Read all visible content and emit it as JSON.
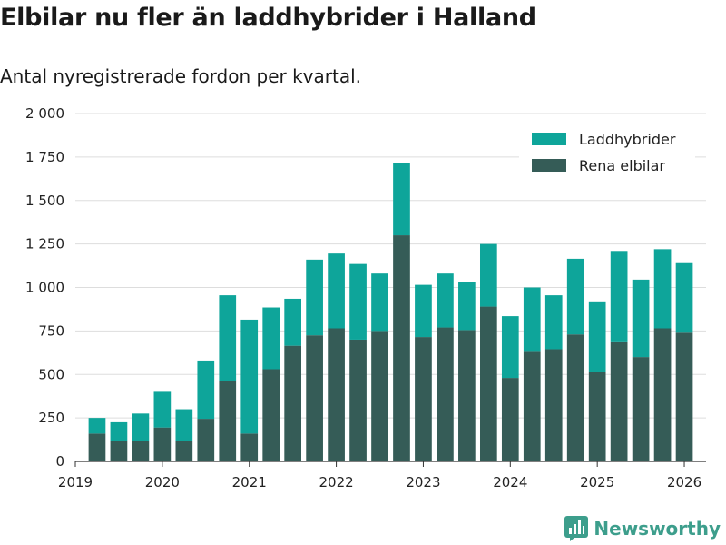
{
  "title": "Elbilar nu fler än laddhybrider i Halland",
  "subtitle": "Antal nyregistrerade fordon per kvartal.",
  "logo": {
    "text": "Newsworthy",
    "icon": "bar-chart-icon"
  },
  "colors": {
    "laddhybrider": "#0ea59a",
    "elbilar": "#355c57",
    "grid": "#dddddd",
    "axis": "#333333",
    "brand": "#3d9e8c"
  },
  "chart_data": {
    "type": "bar",
    "stacked": true,
    "title": "Elbilar nu fler än laddhybrider i Halland",
    "subtitle": "Antal nyregistrerade fordon per kvartal.",
    "xlabel": "",
    "ylabel": "",
    "ylim": [
      0,
      2000
    ],
    "yticks": [
      0,
      250,
      500,
      750,
      1000,
      1250,
      1500,
      1750,
      2000
    ],
    "ytick_labels": [
      "0",
      "250",
      "500",
      "750",
      "1 000",
      "1 250",
      "1 500",
      "1 750",
      "2 000"
    ],
    "xlim": [
      2019,
      2026.25
    ],
    "xticks": [
      2019,
      2020,
      2021,
      2022,
      2023,
      2024,
      2025,
      2026
    ],
    "xtick_labels": [
      "2019",
      "2020",
      "2021",
      "2022",
      "2023",
      "2024",
      "2025",
      "2026"
    ],
    "legend_position": "top-right",
    "categories": [
      "2019 Q2",
      "2019 Q3",
      "2019 Q4",
      "2020 Q1",
      "2020 Q2",
      "2020 Q3",
      "2020 Q4",
      "2021 Q1",
      "2021 Q2",
      "2021 Q3",
      "2021 Q4",
      "2022 Q1",
      "2022 Q2",
      "2022 Q3",
      "2022 Q4",
      "2023 Q1",
      "2023 Q2",
      "2023 Q3",
      "2023 Q4",
      "2024 Q1",
      "2024 Q2",
      "2024 Q3",
      "2024 Q4",
      "2025 Q1",
      "2025 Q2",
      "2025 Q3",
      "2025 Q4",
      "2026 Q1"
    ],
    "x": [
      2019.25,
      2019.5,
      2019.75,
      2020,
      2020.25,
      2020.5,
      2020.75,
      2021,
      2021.25,
      2021.5,
      2021.75,
      2022,
      2022.25,
      2022.5,
      2022.75,
      2023,
      2023.25,
      2023.5,
      2023.75,
      2024,
      2024.25,
      2024.5,
      2024.75,
      2025,
      2025.25,
      2025.5,
      2025.75,
      2026
    ],
    "series": [
      {
        "name": "Rena elbilar",
        "color_key": "elbilar",
        "values": [
          160,
          120,
          120,
          195,
          115,
          245,
          460,
          160,
          530,
          665,
          725,
          765,
          700,
          750,
          1300,
          715,
          770,
          755,
          890,
          480,
          635,
          645,
          730,
          515,
          690,
          600,
          765,
          740
        ]
      },
      {
        "name": "Laddhybrider",
        "color_key": "laddhybrider",
        "values": [
          90,
          105,
          155,
          205,
          185,
          335,
          495,
          655,
          355,
          270,
          435,
          430,
          435,
          330,
          415,
          300,
          310,
          275,
          360,
          355,
          365,
          310,
          435,
          405,
          520,
          445,
          455,
          405
        ]
      }
    ]
  }
}
